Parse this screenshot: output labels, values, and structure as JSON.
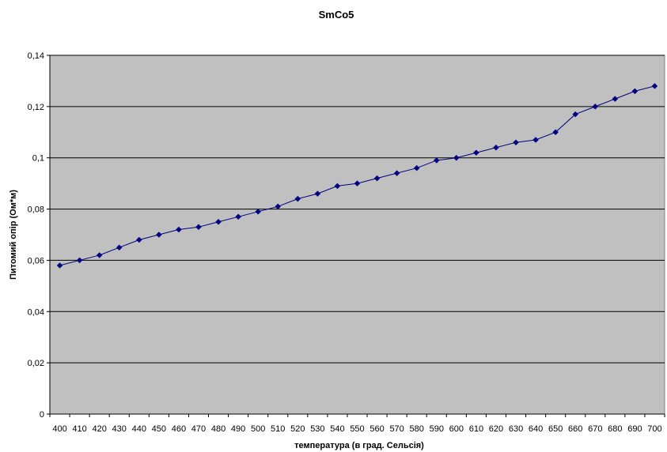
{
  "chart_data": {
    "type": "line",
    "title": "SmCo5",
    "xlabel": "температура (в град. Сельсія)",
    "ylabel": "Питомий опір (Ом*м)",
    "categories": [
      "400",
      "410",
      "420",
      "430",
      "440",
      "450",
      "460",
      "470",
      "480",
      "490",
      "500",
      "510",
      "520",
      "530",
      "540",
      "550",
      "560",
      "570",
      "580",
      "590",
      "600",
      "610",
      "620",
      "630",
      "640",
      "650",
      "660",
      "670",
      "680",
      "690",
      "700"
    ],
    "series": [
      {
        "values": [
          0.058,
          0.06,
          0.062,
          0.065,
          0.068,
          0.07,
          0.072,
          0.073,
          0.075,
          0.077,
          0.079,
          0.081,
          0.084,
          0.086,
          0.089,
          0.09,
          0.092,
          0.094,
          0.096,
          0.099,
          0.1,
          0.102,
          0.104,
          0.106,
          0.107,
          0.11,
          0.117,
          0.12,
          0.123,
          0.126,
          0.128
        ]
      }
    ],
    "ylim": [
      0,
      0.14
    ],
    "yticks": [
      0,
      0.02,
      0.04,
      0.06,
      0.08,
      0.1,
      0.12,
      0.14
    ],
    "ytick_labels": [
      "0",
      "0,02",
      "0,04",
      "0,06",
      "0,08",
      "0,1",
      "0,12",
      "0,14"
    ],
    "grid": true,
    "legend": "none",
    "colors": {
      "plot_background": "#c0c0c0",
      "line": "#000080",
      "marker": "#000080",
      "gridline": "#000000"
    },
    "marker": "diamond-icon"
  }
}
